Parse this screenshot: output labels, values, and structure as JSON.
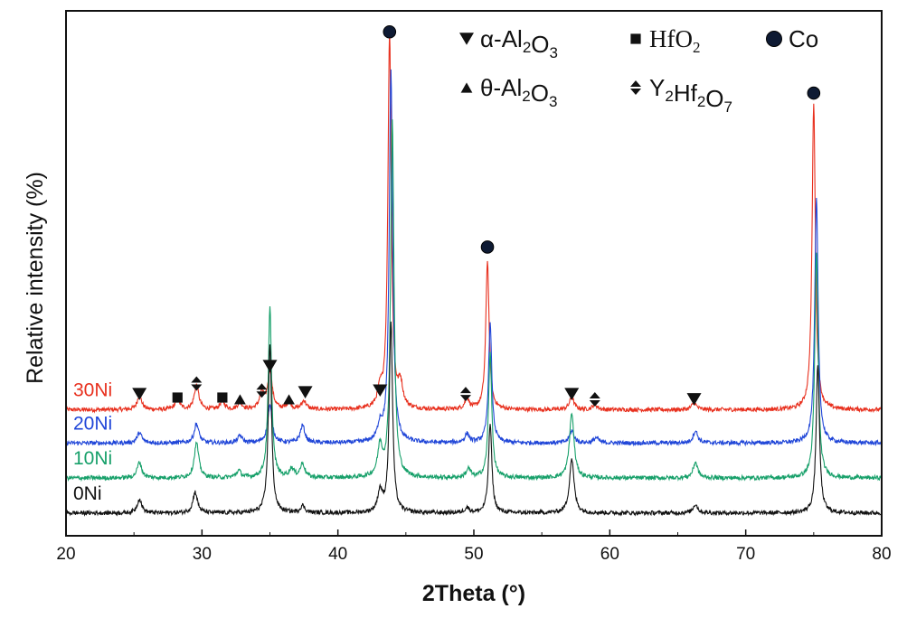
{
  "chart_data": {
    "type": "line",
    "xlabel": "2Theta (°)",
    "ylabel": "Relative intensity (%)",
    "xlim": [
      20,
      80
    ],
    "xticks": [
      20,
      30,
      40,
      50,
      60,
      70,
      80
    ],
    "legend_position": "top-right",
    "legend": [
      {
        "marker": "down-triangle",
        "base": "α-Al",
        "sub1": "2",
        "mid": "O",
        "sub2": "3",
        "tail": "",
        "font": "sans"
      },
      {
        "marker": "square",
        "base": "HfO",
        "sub1": "2",
        "mid": "",
        "sub2": "",
        "tail": "",
        "font": "serif"
      },
      {
        "marker": "circle",
        "base": "Co",
        "sub1": "",
        "mid": "",
        "sub2": "",
        "tail": "",
        "font": "sans"
      },
      {
        "marker": "up-triangle",
        "base": "θ-Al",
        "sub1": "2",
        "mid": "O",
        "sub2": "3",
        "tail": "",
        "font": "sans"
      },
      {
        "marker": "double-arrow",
        "base": "Y",
        "sub1": "2",
        "mid": "Hf",
        "sub2": "2",
        "tail": "O",
        "sub3": "7",
        "font": "sans"
      }
    ],
    "series": [
      {
        "name": "30Ni",
        "color": "#e8301e",
        "baseline": 0.72,
        "noise": 0.012,
        "peaks": [
          [
            25.4,
            0.08
          ],
          [
            28.2,
            0.06
          ],
          [
            29.6,
            0.14
          ],
          [
            31.5,
            0.05
          ],
          [
            32.8,
            0.04
          ],
          [
            34.4,
            0.09
          ],
          [
            35.0,
            0.22
          ],
          [
            36.4,
            0.04
          ],
          [
            37.5,
            0.05
          ],
          [
            43.1,
            0.09
          ],
          [
            43.8,
            2.15
          ],
          [
            44.6,
            0.13
          ],
          [
            49.5,
            0.06
          ],
          [
            51.0,
            0.85
          ],
          [
            57.2,
            0.07
          ],
          [
            58.9,
            0.03
          ],
          [
            66.2,
            0.04
          ],
          [
            75.0,
            1.75
          ]
        ]
      },
      {
        "name": "20Ni",
        "color": "#2046d8",
        "baseline": 0.53,
        "noise": 0.012,
        "peaks": [
          [
            25.4,
            0.06
          ],
          [
            29.6,
            0.11
          ],
          [
            32.8,
            0.04
          ],
          [
            35.0,
            0.21
          ],
          [
            37.4,
            0.1
          ],
          [
            43.1,
            0.09
          ],
          [
            43.9,
            2.13
          ],
          [
            49.5,
            0.05
          ],
          [
            51.2,
            0.68
          ],
          [
            57.2,
            0.07
          ],
          [
            59.0,
            0.03
          ],
          [
            66.3,
            0.07
          ],
          [
            75.2,
            1.4
          ]
        ]
      },
      {
        "name": "10Ni",
        "color": "#17a06a",
        "baseline": 0.33,
        "noise": 0.012,
        "peaks": [
          [
            25.4,
            0.09
          ],
          [
            29.6,
            0.2
          ],
          [
            32.7,
            0.04
          ],
          [
            35.0,
            0.97
          ],
          [
            36.6,
            0.05
          ],
          [
            37.4,
            0.08
          ],
          [
            43.1,
            0.17
          ],
          [
            44.0,
            2.05
          ],
          [
            49.6,
            0.05
          ],
          [
            51.2,
            0.71
          ],
          [
            57.2,
            0.37
          ],
          [
            66.3,
            0.09
          ],
          [
            75.2,
            1.29
          ]
        ]
      },
      {
        "name": "0Ni",
        "color": "#111111",
        "baseline": 0.13,
        "noise": 0.012,
        "peaks": [
          [
            25.4,
            0.08
          ],
          [
            29.5,
            0.12
          ],
          [
            35.0,
            0.97
          ],
          [
            37.4,
            0.04
          ],
          [
            43.1,
            0.12
          ],
          [
            43.9,
            1.09
          ],
          [
            49.5,
            0.03
          ],
          [
            51.2,
            0.51
          ],
          [
            57.2,
            0.31
          ],
          [
            66.3,
            0.05
          ],
          [
            75.3,
            0.85
          ]
        ]
      }
    ],
    "phase_markers": [
      {
        "symbol": "down-triangle",
        "x": 25.4,
        "y": 0.81
      },
      {
        "symbol": "square",
        "x": 28.2,
        "y": 0.79
      },
      {
        "symbol": "double-arrow",
        "x": 29.6,
        "y": 0.87
      },
      {
        "symbol": "square",
        "x": 31.5,
        "y": 0.79
      },
      {
        "symbol": "up-triangle",
        "x": 32.8,
        "y": 0.78
      },
      {
        "symbol": "double-arrow",
        "x": 34.4,
        "y": 0.83
      },
      {
        "symbol": "down-triangle",
        "x": 35.0,
        "y": 0.97
      },
      {
        "symbol": "up-triangle",
        "x": 36.4,
        "y": 0.78
      },
      {
        "symbol": "down-triangle",
        "x": 37.6,
        "y": 0.82
      },
      {
        "symbol": "down-triangle",
        "x": 43.1,
        "y": 0.83
      },
      {
        "symbol": "circle",
        "x": 43.8,
        "y": 2.88
      },
      {
        "symbol": "double-arrow",
        "x": 49.4,
        "y": 0.81
      },
      {
        "symbol": "circle",
        "x": 51.0,
        "y": 1.65
      },
      {
        "symbol": "down-triangle",
        "x": 57.2,
        "y": 0.81
      },
      {
        "symbol": "double-arrow",
        "x": 58.9,
        "y": 0.78
      },
      {
        "symbol": "down-triangle",
        "x": 66.2,
        "y": 0.78
      },
      {
        "symbol": "circle",
        "x": 75.0,
        "y": 2.53
      }
    ]
  }
}
